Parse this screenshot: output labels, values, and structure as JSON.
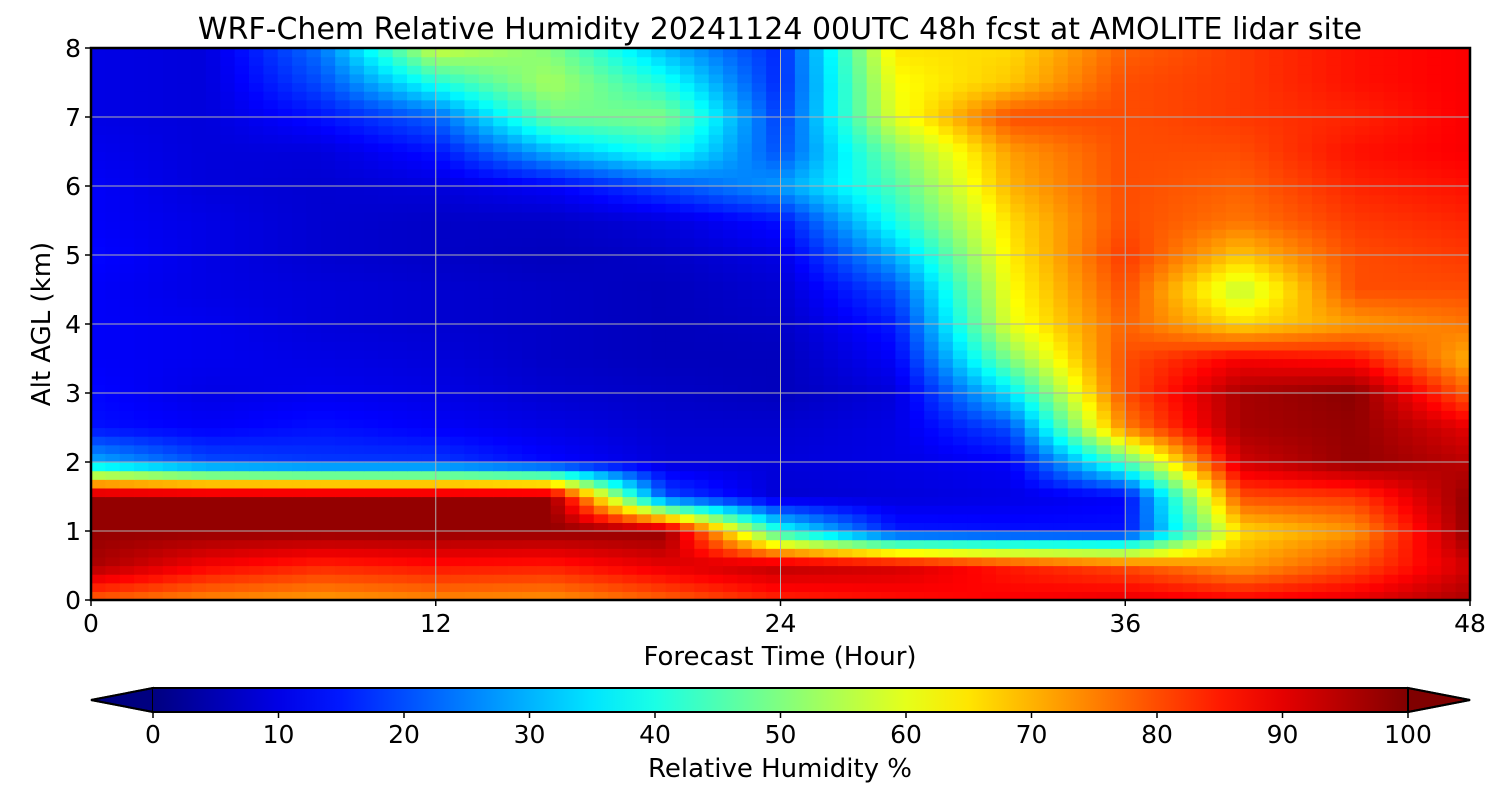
{
  "chart_data": {
    "type": "heatmap",
    "title": "WRF-Chem Relative Humidity 20241124 00UTC 48h fcst at AMOLITE lidar site",
    "xlabel": "Forecast Time (Hour)",
    "ylabel": "Alt AGL (km)",
    "xlim": [
      0,
      48
    ],
    "ylim": [
      0,
      8
    ],
    "x_ticks": [
      "0",
      "12",
      "24",
      "36",
      "48"
    ],
    "y_ticks": [
      "0",
      "1",
      "2",
      "3",
      "4",
      "5",
      "6",
      "7",
      "8"
    ],
    "grid": true,
    "colormap": "jet",
    "colorbar": {
      "label": "Relative Humidity %",
      "range": [
        0,
        100
      ],
      "ticks": [
        "0",
        "10",
        "20",
        "30",
        "40",
        "50",
        "60",
        "70",
        "80",
        "90",
        "100"
      ],
      "extend": "both"
    },
    "x": [
      0,
      4,
      8,
      12,
      16,
      20,
      24,
      28,
      32,
      36,
      40,
      44,
      48
    ],
    "y": [
      0.0,
      0.5,
      1.0,
      1.5,
      2.0,
      2.5,
      3.0,
      3.5,
      4.0,
      4.5,
      5.0,
      5.5,
      6.0,
      6.5,
      7.0,
      7.5,
      8.0
    ],
    "values": [
      [
        78,
        74,
        72,
        74,
        73,
        78,
        84,
        86,
        88,
        90,
        88,
        90,
        96
      ],
      [
        96,
        88,
        84,
        86,
        85,
        90,
        94,
        92,
        85,
        80,
        72,
        80,
        92
      ],
      [
        98,
        98,
        98,
        98,
        98,
        98,
        40,
        15,
        14,
        14,
        66,
        73,
        98
      ],
      [
        98,
        98,
        98,
        98,
        98,
        20,
        8,
        9,
        10,
        12,
        80,
        82,
        98
      ],
      [
        30,
        20,
        18,
        18,
        13,
        9,
        9,
        10,
        12,
        45,
        92,
        98,
        94
      ],
      [
        14,
        12,
        14,
        12,
        10,
        8,
        8,
        10,
        20,
        75,
        96,
        98,
        90
      ],
      [
        13,
        10,
        11,
        10,
        8,
        7,
        6,
        9,
        35,
        80,
        96,
        99,
        78
      ],
      [
        12,
        11,
        10,
        9,
        7,
        6,
        6,
        12,
        50,
        80,
        88,
        86,
        70
      ],
      [
        12,
        11,
        9,
        8,
        7,
        6,
        7,
        15,
        60,
        78,
        66,
        72,
        76
      ],
      [
        12,
        10,
        9,
        8,
        7,
        6,
        8,
        20,
        62,
        80,
        56,
        80,
        80
      ],
      [
        13,
        10,
        8,
        7,
        6,
        7,
        10,
        30,
        64,
        82,
        68,
        80,
        82
      ],
      [
        12,
        10,
        8,
        7,
        7,
        9,
        14,
        40,
        66,
        80,
        76,
        82,
        84
      ],
      [
        12,
        9,
        8,
        9,
        12,
        20,
        28,
        45,
        70,
        80,
        78,
        84,
        86
      ],
      [
        11,
        9,
        9,
        14,
        30,
        40,
        20,
        50,
        72,
        80,
        80,
        86,
        88
      ],
      [
        10,
        9,
        14,
        22,
        48,
        50,
        18,
        60,
        80,
        80,
        82,
        84,
        88
      ],
      [
        10,
        9,
        20,
        40,
        54,
        40,
        16,
        62,
        68,
        80,
        82,
        86,
        88
      ],
      [
        10,
        9,
        24,
        58,
        50,
        30,
        16,
        65,
        66,
        78,
        82,
        86,
        88
      ]
    ]
  }
}
